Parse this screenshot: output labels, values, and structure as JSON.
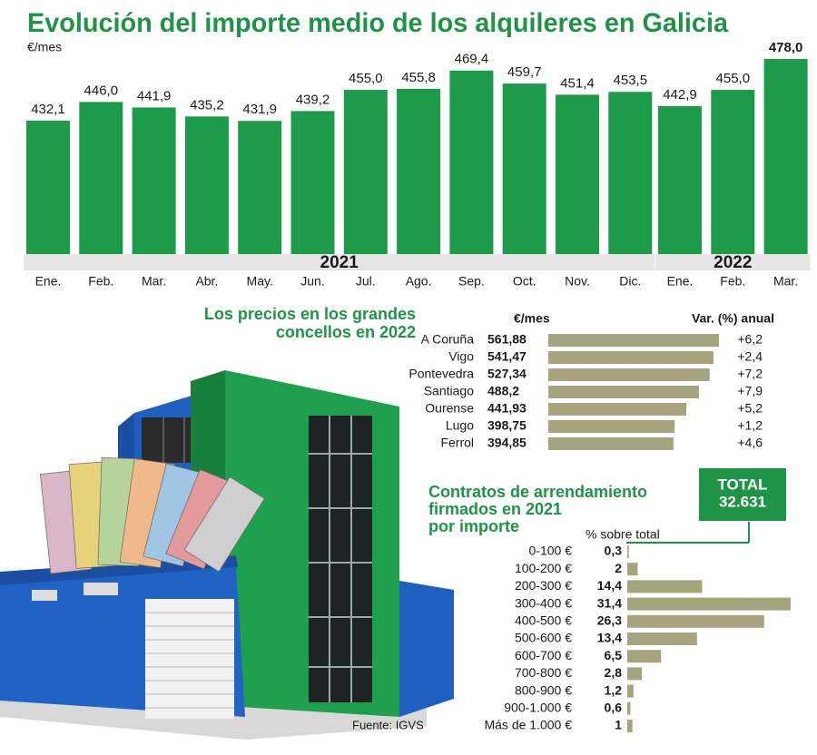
{
  "chart_data": [
    {
      "type": "bar",
      "title": "Evolución del importe medio de los alquileres en Galicia",
      "unit": "€/mes",
      "color": "#1d9a4a",
      "groups": [
        {
          "name": "2021",
          "categories": [
            "Ene.",
            "Feb.",
            "Mar.",
            "Abr.",
            "May.",
            "Jun.",
            "Jul.",
            "Ago.",
            "Sep.",
            "Oct.",
            "Nov.",
            "Dic."
          ],
          "values": [
            432.1,
            446.0,
            441.9,
            435.2,
            431.9,
            439.2,
            455.0,
            455.8,
            469.4,
            459.7,
            451.4,
            453.5
          ],
          "value_labels": [
            "432,1",
            "446,0",
            "441,9",
            "435,2",
            "431,9",
            "439,2",
            "455,0",
            "455,8",
            "469,4",
            "459,7",
            "451,4",
            "453,5"
          ]
        },
        {
          "name": "2022",
          "categories": [
            "Ene.",
            "Feb.",
            "Mar."
          ],
          "values": [
            442.9,
            455.0,
            478.0
          ],
          "value_labels": [
            "442,9",
            "455,0",
            "478,0"
          ]
        }
      ]
    },
    {
      "type": "hbar",
      "title": [
        "Los precios en los grandes",
        "concellos en 2022"
      ],
      "categories": [
        "A Coruña",
        "Vigo",
        "Pontevedra",
        "Santiago",
        "Ourense",
        "Lugo",
        "Ferrol"
      ],
      "series": [
        {
          "name": "€/mes",
          "color": "#a6a47f",
          "values": [
            561.88,
            541.47,
            527.34,
            488.2,
            441.93,
            398.75,
            394.85
          ],
          "value_labels": [
            "561,88",
            "541,47",
            "527,34",
            "488,2",
            "441,93",
            "398,75",
            "394,85"
          ]
        },
        {
          "name": "Var. (%) anual",
          "values": [
            6.2,
            2.4,
            7.2,
            7.9,
            5.2,
            1.2,
            4.6
          ],
          "value_labels": [
            "+6,2",
            "+2,4",
            "+7,2",
            "+7,9",
            "+5,2",
            "+1,2",
            "+4,6"
          ]
        }
      ]
    },
    {
      "type": "hbar",
      "title": [
        "Contratos de arrendamiento",
        "firmados en 2021",
        "por importe"
      ],
      "subtitle": "% sobre total",
      "total_label": "TOTAL",
      "total": {
        "value": 32631,
        "label": "32.631"
      },
      "color": "#a6a47f",
      "categories": [
        "0-100 €",
        "100-200 €",
        "200-300 €",
        "300-400 €",
        "400-500 €",
        "500-600 €",
        "600-700 €",
        "700-800 €",
        "800-900 €",
        "900-1.000 €",
        "Más de 1.000 €"
      ],
      "values": [
        0.3,
        2,
        14.4,
        31.4,
        26.3,
        13.4,
        6.5,
        2.8,
        1.2,
        0.6,
        1
      ],
      "value_labels": [
        "0,3",
        "2",
        "14,4",
        "31,4",
        "26,3",
        "13,4",
        "6,5",
        "2,8",
        "1,2",
        "0,6",
        "1"
      ]
    }
  ],
  "source": "Fuente: IGVS"
}
